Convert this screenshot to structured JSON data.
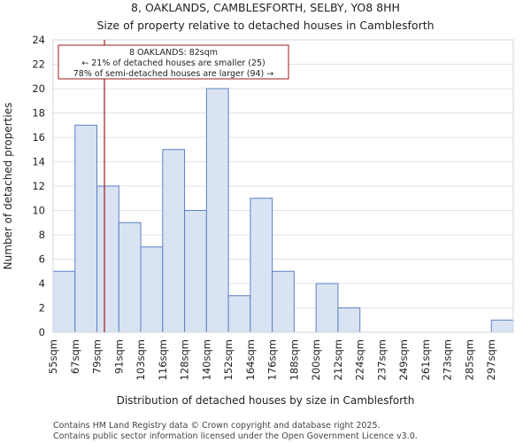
{
  "chart_data": {
    "type": "bar",
    "title": "8, OAKLANDS, CAMBLESFORTH, SELBY, YO8 8HH",
    "subtitle": "Size of property relative to detached houses in Camblesforth",
    "xlabel": "Distribution of detached houses by size in Camblesforth",
    "ylabel": "Number of detached properties",
    "categories": [
      "55sqm",
      "67sqm",
      "79sqm",
      "91sqm",
      "103sqm",
      "116sqm",
      "128sqm",
      "140sqm",
      "152sqm",
      "164sqm",
      "176sqm",
      "188sqm",
      "200sqm",
      "212sqm",
      "224sqm",
      "237sqm",
      "249sqm",
      "261sqm",
      "273sqm",
      "285sqm",
      "297sqm"
    ],
    "values": [
      5,
      17,
      12,
      9,
      7,
      15,
      10,
      20,
      3,
      11,
      5,
      0,
      4,
      2,
      0,
      0,
      0,
      0,
      0,
      0,
      1
    ],
    "ylim": [
      0,
      24
    ],
    "yticks": [
      0,
      2,
      4,
      6,
      8,
      10,
      12,
      14,
      16,
      18,
      20,
      22,
      24
    ],
    "grid": true,
    "marker": {
      "value_sqm": 82,
      "label_line1": "8 OAKLANDS: 82sqm",
      "label_line2": "← 21% of detached houses are smaller (25)",
      "label_line3": "78% of semi-detached houses are larger (94) →"
    },
    "colors": {
      "bar_fill": "#dae3f3",
      "bar_stroke": "#5b80c0",
      "marker": "#a01818",
      "grid": "#dde3ee"
    }
  },
  "footer": {
    "line1": "Contains HM Land Registry data © Crown copyright and database right 2025.",
    "line2": "Contains public sector information licensed under the Open Government Licence v3.0."
  }
}
